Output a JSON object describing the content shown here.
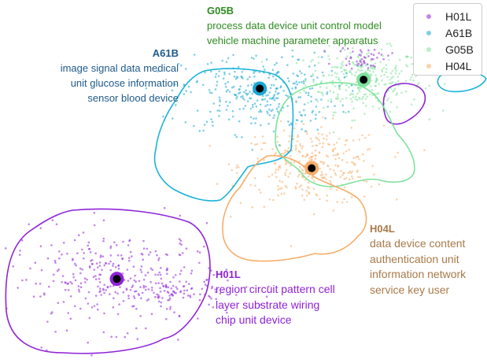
{
  "chart_data": {
    "type": "scatter",
    "title": "",
    "xlabel": "",
    "ylabel": "",
    "grid": false,
    "legend_position": "top-right",
    "series": [
      {
        "name": "H01L",
        "color": "#8f23d8",
        "centroid": [
          -3.2,
          -3.1
        ],
        "clusters": [
          {
            "center": [
              -3.2,
              -3.1
            ],
            "spread": [
              0.85,
              0.55
            ],
            "weight": 1.0
          },
          {
            "center": [
              -2.4,
              -3.4
            ],
            "spread": [
              0.35,
              0.15
            ],
            "weight": 0.25
          },
          {
            "center": [
              0.6,
              1.9
            ],
            "spread": [
              0.2,
              0.12
            ],
            "weight": 0.15
          },
          {
            "center": [
              1.8,
              2.5
            ],
            "spread": [
              0.1,
              0.05
            ],
            "weight": 0.05
          }
        ],
        "annotation": {
          "code": "H01L",
          "terms": [
            "region circuit pattern cell",
            "layer substrate wiring",
            "chip unit device"
          ]
        }
      },
      {
        "name": "A61B",
        "color": "#1aa6d4",
        "centroid": [
          -1.0,
          1.2
        ],
        "clusters": [
          {
            "center": [
              -1.0,
              1.1
            ],
            "spread": [
              0.6,
              0.45
            ],
            "weight": 1.0
          },
          {
            "center": [
              1.95,
              2.55
            ],
            "spread": [
              0.15,
              0.03
            ],
            "weight": 0.08
          }
        ],
        "annotation": {
          "code": "A61B",
          "terms": [
            "image signal data medical",
            "unit glucose information",
            "sensor blood device"
          ]
        }
      },
      {
        "name": "G05B",
        "color": "#7fe29c",
        "centroid": [
          0.6,
          1.4
        ],
        "clusters": [
          {
            "center": [
              0.6,
              1.4
            ],
            "spread": [
              0.45,
              0.35
            ],
            "weight": 1.0
          }
        ],
        "annotation": {
          "code": "G05B",
          "terms": [
            "process data device unit control model",
            "vehicle machine parameter apparatus"
          ]
        }
      },
      {
        "name": "H04L",
        "color": "#f7ad6a",
        "centroid": [
          -0.2,
          -0.6
        ],
        "clusters": [
          {
            "center": [
              -0.2,
              -0.55
            ],
            "spread": [
              0.55,
              0.45
            ],
            "weight": 1.0
          }
        ],
        "annotation": {
          "code": "H04L",
          "terms": [
            "data device content",
            "authentication unit",
            "information network",
            "service key user"
          ]
        }
      }
    ],
    "xlim": [
      -5.0,
      2.5
    ],
    "ylim": [
      -5.0,
      3.2
    ]
  }
}
